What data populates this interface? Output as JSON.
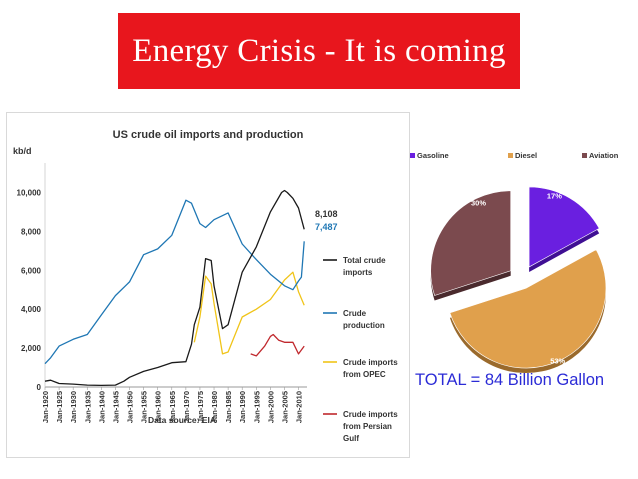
{
  "slide": {
    "title": "Energy Crisis - It is coming",
    "total": "TOTAL = 84 Billion Gallon"
  },
  "colors": {
    "title_bg": "#e8161d",
    "total_crude_imports": "#1a1a1a",
    "crude_production": "#1f77b4",
    "opec": "#f0c419",
    "persian_gulf": "#c0282d",
    "gasoline": "#6a1fe0",
    "diesel": "#e0a04c",
    "aviation": "#7b4a4e"
  },
  "chart_data": [
    {
      "type": "line",
      "title": "US crude oil imports and production",
      "ylabel": "kb/d",
      "xlabel": "Data source: EIA",
      "ylim": [
        0,
        11000
      ],
      "xlim": [
        1920,
        2013
      ],
      "y_ticks": [
        "0",
        "2,000",
        "4,000",
        "6,000",
        "8,000",
        "10,000"
      ],
      "y_tick_values": [
        0,
        2000,
        4000,
        6000,
        8000,
        10000
      ],
      "x_ticks": [
        "Jan-1920",
        "Jan-1925",
        "Jan-1930",
        "Jan-1935",
        "Jan-1940",
        "Jan-1945",
        "Jan-1950",
        "Jan-1955",
        "Jan-1960",
        "Jan-1965",
        "Jan-1970",
        "Jan-1975",
        "Jan-1980",
        "Jan-1985",
        "Jan-1990",
        "Jan-1995",
        "Jan-2000",
        "Jan-2005",
        "Jan-2010"
      ],
      "x_tick_years": [
        1920,
        1925,
        1930,
        1935,
        1940,
        1945,
        1950,
        1955,
        1960,
        1965,
        1970,
        1975,
        1980,
        1985,
        1990,
        1995,
        2000,
        2005,
        2010
      ],
      "end_labels": [
        {
          "text": "8,108",
          "y": 8108,
          "series": 0
        },
        {
          "text": "7,487",
          "y": 7487,
          "series": 1
        }
      ],
      "series": [
        {
          "name": "Total crude imports",
          "x": [
            1920,
            1922,
            1925,
            1930,
            1935,
            1940,
            1945,
            1948,
            1950,
            1955,
            1960,
            1965,
            1970,
            1972,
            1973,
            1975,
            1977,
            1979,
            1980,
            1983,
            1985,
            1990,
            1995,
            2000,
            2004,
            2005,
            2006,
            2008,
            2010,
            2012
          ],
          "y": [
            300,
            350,
            180,
            150,
            100,
            80,
            100,
            300,
            500,
            800,
            1000,
            1250,
            1300,
            2200,
            3200,
            4100,
            6600,
            6500,
            5200,
            3000,
            3200,
            5900,
            7200,
            9000,
            10000,
            10100,
            10000,
            9700,
            9200,
            8108
          ]
        },
        {
          "name": "Crude production",
          "x": [
            1920,
            1922,
            1925,
            1930,
            1935,
            1940,
            1945,
            1950,
            1955,
            1960,
            1965,
            1970,
            1972,
            1975,
            1977,
            1980,
            1985,
            1990,
            1995,
            2000,
            2005,
            2008,
            2010,
            2011,
            2012
          ],
          "y": [
            1200,
            1500,
            2100,
            2450,
            2700,
            3700,
            4700,
            5400,
            6800,
            7100,
            7800,
            9600,
            9450,
            8400,
            8200,
            8600,
            8950,
            7350,
            6550,
            5800,
            5200,
            5000,
            5450,
            5650,
            7487
          ]
        },
        {
          "name": "Crude imports from OPEC",
          "x": [
            1973,
            1975,
            1977,
            1979,
            1980,
            1983,
            1985,
            1990,
            1995,
            2000,
            2005,
            2008,
            2010,
            2012
          ],
          "y": [
            2300,
            3600,
            5700,
            5300,
            4300,
            1700,
            1800,
            3600,
            4000,
            4500,
            5500,
            5900,
            4900,
            4200
          ]
        },
        {
          "name": "Crude imports from Persian Gulf",
          "x": [
            1993,
            1995,
            1998,
            2000,
            2001,
            2003,
            2005,
            2008,
            2010,
            2012
          ],
          "y": [
            1700,
            1600,
            2100,
            2600,
            2700,
            2400,
            2300,
            2300,
            1700,
            2100
          ]
        }
      ],
      "legend": [
        {
          "label_lines": [
            "Total crude",
            "imports"
          ],
          "series": 0
        },
        {
          "label_lines": [
            "Crude",
            "production"
          ],
          "series": 1
        },
        {
          "label_lines": [
            "Crude imports",
            "from OPEC"
          ],
          "series": 2
        },
        {
          "label_lines": [
            "Crude imports",
            "from Persian",
            "Gulf"
          ],
          "series": 3
        }
      ]
    },
    {
      "type": "pie",
      "categories": [
        "Gasoline",
        "Diesel",
        "Aviation"
      ],
      "values": [
        17,
        53,
        30
      ],
      "data_labels": [
        "17%",
        "53%",
        "30%"
      ],
      "legend_placement": "top"
    }
  ]
}
